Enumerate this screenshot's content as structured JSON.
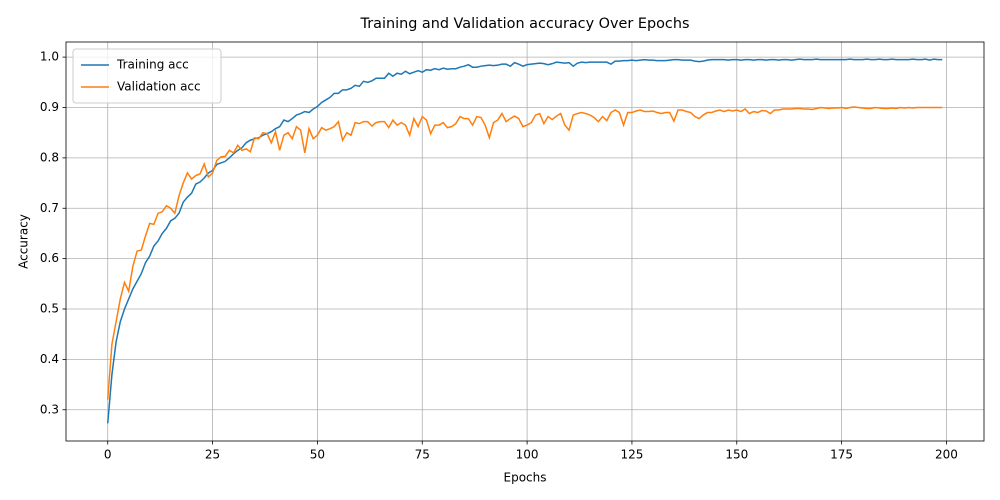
{
  "chart_data": {
    "type": "line",
    "title": "Training and Validation accuracy Over Epochs",
    "xlabel": "Epochs",
    "ylabel": "Accuracy",
    "x": [
      0,
      1,
      2,
      3,
      4,
      5,
      6,
      7,
      8,
      9,
      10,
      11,
      12,
      13,
      14,
      15,
      16,
      17,
      18,
      19,
      20,
      21,
      22,
      23,
      24,
      25,
      26,
      27,
      28,
      29,
      30,
      31,
      32,
      33,
      34,
      35,
      36,
      37,
      38,
      39,
      40,
      41,
      42,
      43,
      44,
      45,
      46,
      47,
      48,
      49,
      50,
      51,
      52,
      53,
      54,
      55,
      56,
      57,
      58,
      59,
      60,
      61,
      62,
      63,
      64,
      65,
      66,
      67,
      68,
      69,
      70,
      71,
      72,
      73,
      74,
      75,
      76,
      77,
      78,
      79,
      80,
      81,
      82,
      83,
      84,
      85,
      86,
      87,
      88,
      89,
      90,
      91,
      92,
      93,
      94,
      95,
      96,
      97,
      98,
      99,
      100,
      101,
      102,
      103,
      104,
      105,
      106,
      107,
      108,
      109,
      110,
      111,
      112,
      113,
      114,
      115,
      116,
      117,
      118,
      119,
      120,
      121,
      122,
      123,
      124,
      125,
      126,
      127,
      128,
      129,
      130,
      131,
      132,
      133,
      134,
      135,
      136,
      137,
      138,
      139,
      140,
      141,
      142,
      143,
      144,
      145,
      146,
      147,
      148,
      149,
      150,
      151,
      152,
      153,
      154,
      155,
      156,
      157,
      158,
      159,
      160,
      161,
      162,
      163,
      164,
      165,
      166,
      167,
      168,
      169,
      170,
      171,
      172,
      173,
      174,
      175,
      176,
      177,
      178,
      179,
      180,
      181,
      182,
      183,
      184,
      185,
      186,
      187,
      188,
      189,
      190,
      191,
      192,
      193,
      194,
      195,
      196,
      197,
      198,
      199
    ],
    "series": [
      {
        "name": "Training acc",
        "color": "#1f77b4",
        "values": [
          0.273,
          0.37,
          0.435,
          0.475,
          0.5,
          0.52,
          0.54,
          0.555,
          0.57,
          0.592,
          0.605,
          0.625,
          0.635,
          0.65,
          0.66,
          0.675,
          0.68,
          0.69,
          0.712,
          0.722,
          0.73,
          0.748,
          0.752,
          0.76,
          0.77,
          0.775,
          0.787,
          0.79,
          0.793,
          0.8,
          0.808,
          0.815,
          0.82,
          0.83,
          0.835,
          0.838,
          0.84,
          0.845,
          0.848,
          0.852,
          0.858,
          0.862,
          0.875,
          0.872,
          0.878,
          0.885,
          0.888,
          0.892,
          0.89,
          0.897,
          0.902,
          0.91,
          0.915,
          0.92,
          0.928,
          0.928,
          0.935,
          0.935,
          0.938,
          0.944,
          0.942,
          0.952,
          0.95,
          0.953,
          0.958,
          0.958,
          0.958,
          0.968,
          0.962,
          0.968,
          0.966,
          0.972,
          0.967,
          0.97,
          0.973,
          0.97,
          0.975,
          0.974,
          0.977,
          0.975,
          0.978,
          0.976,
          0.977,
          0.977,
          0.98,
          0.982,
          0.985,
          0.98,
          0.98,
          0.982,
          0.983,
          0.984,
          0.983,
          0.984,
          0.986,
          0.986,
          0.982,
          0.989,
          0.986,
          0.982,
          0.985,
          0.986,
          0.987,
          0.988,
          0.987,
          0.985,
          0.987,
          0.99,
          0.989,
          0.988,
          0.989,
          0.982,
          0.988,
          0.99,
          0.989,
          0.99,
          0.99,
          0.99,
          0.99,
          0.99,
          0.986,
          0.992,
          0.992,
          0.993,
          0.993,
          0.994,
          0.993,
          0.994,
          0.995,
          0.994,
          0.994,
          0.993,
          0.993,
          0.993,
          0.994,
          0.995,
          0.995,
          0.994,
          0.994,
          0.994,
          0.992,
          0.991,
          0.992,
          0.994,
          0.995,
          0.995,
          0.995,
          0.995,
          0.994,
          0.995,
          0.995,
          0.994,
          0.995,
          0.995,
          0.994,
          0.995,
          0.995,
          0.994,
          0.995,
          0.995,
          0.994,
          0.995,
          0.995,
          0.994,
          0.995,
          0.996,
          0.995,
          0.995,
          0.995,
          0.996,
          0.995,
          0.995,
          0.995,
          0.995,
          0.995,
          0.995,
          0.995,
          0.996,
          0.995,
          0.995,
          0.995,
          0.996,
          0.995,
          0.995,
          0.996,
          0.995,
          0.995,
          0.996,
          0.995,
          0.995,
          0.995,
          0.995,
          0.996,
          0.995,
          0.995,
          0.996,
          0.994,
          0.996,
          0.995,
          0.995
        ]
      },
      {
        "name": "Validation acc",
        "color": "#ff7f0e",
        "values": [
          0.32,
          0.43,
          0.475,
          0.52,
          0.553,
          0.535,
          0.585,
          0.615,
          0.617,
          0.645,
          0.67,
          0.668,
          0.69,
          0.693,
          0.705,
          0.7,
          0.69,
          0.725,
          0.75,
          0.77,
          0.758,
          0.765,
          0.768,
          0.788,
          0.762,
          0.77,
          0.795,
          0.802,
          0.803,
          0.815,
          0.81,
          0.825,
          0.815,
          0.818,
          0.812,
          0.84,
          0.838,
          0.85,
          0.848,
          0.83,
          0.852,
          0.815,
          0.845,
          0.85,
          0.838,
          0.862,
          0.855,
          0.81,
          0.858,
          0.838,
          0.845,
          0.86,
          0.855,
          0.858,
          0.862,
          0.872,
          0.835,
          0.85,
          0.845,
          0.87,
          0.868,
          0.872,
          0.872,
          0.863,
          0.87,
          0.872,
          0.872,
          0.86,
          0.875,
          0.865,
          0.87,
          0.865,
          0.845,
          0.878,
          0.862,
          0.882,
          0.875,
          0.848,
          0.865,
          0.865,
          0.87,
          0.86,
          0.862,
          0.868,
          0.882,
          0.878,
          0.878,
          0.865,
          0.882,
          0.88,
          0.865,
          0.84,
          0.87,
          0.875,
          0.888,
          0.872,
          0.878,
          0.883,
          0.878,
          0.862,
          0.865,
          0.87,
          0.885,
          0.888,
          0.868,
          0.882,
          0.876,
          0.883,
          0.888,
          0.865,
          0.855,
          0.885,
          0.888,
          0.89,
          0.888,
          0.885,
          0.88,
          0.872,
          0.882,
          0.874,
          0.89,
          0.895,
          0.89,
          0.865,
          0.89,
          0.89,
          0.893,
          0.895,
          0.892,
          0.892,
          0.893,
          0.89,
          0.888,
          0.89,
          0.89,
          0.873,
          0.895,
          0.895,
          0.892,
          0.89,
          0.882,
          0.878,
          0.885,
          0.89,
          0.89,
          0.893,
          0.895,
          0.892,
          0.895,
          0.893,
          0.895,
          0.892,
          0.897,
          0.888,
          0.892,
          0.89,
          0.894,
          0.893,
          0.888,
          0.895,
          0.895,
          0.897,
          0.897,
          0.897,
          0.898,
          0.898,
          0.897,
          0.897,
          0.896,
          0.898,
          0.9,
          0.899,
          0.898,
          0.899,
          0.899,
          0.9,
          0.898,
          0.9,
          0.901,
          0.9,
          0.899,
          0.898,
          0.898,
          0.9,
          0.899,
          0.898,
          0.898,
          0.899,
          0.898,
          0.9,
          0.899,
          0.9,
          0.899,
          0.9,
          0.9,
          0.9,
          0.9,
          0.9,
          0.9,
          0.9
        ]
      }
    ],
    "xlim": [
      -9.95,
      208.95
    ],
    "xticks": [
      0,
      25,
      50,
      75,
      100,
      125,
      150,
      175,
      200
    ],
    "ylim": [
      0.238,
      1.03
    ],
    "yticks": [
      0.3,
      0.4,
      0.5,
      0.6,
      0.7,
      0.8,
      0.9,
      {
        "value": 1,
        "label": "1.0"
      }
    ],
    "grid": true,
    "legend": "upper left"
  }
}
